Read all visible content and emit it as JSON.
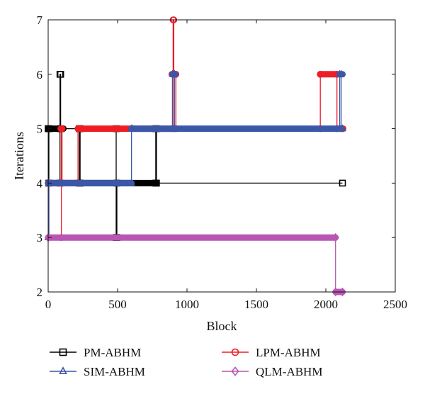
{
  "chart_data": {
    "type": "line",
    "xlabel": "Block",
    "ylabel": "Iterations",
    "xlim": [
      0,
      2500
    ],
    "ylim": [
      2,
      7
    ],
    "xticks": [
      0,
      500,
      1000,
      1500,
      2000,
      2500
    ],
    "yticks": [
      2,
      3,
      4,
      5,
      6,
      7
    ],
    "grid": false,
    "legend_position": "bottom",
    "series": [
      {
        "name": "PM-ABHM",
        "color": "#000000",
        "marker": "square",
        "x": [
          0,
          5,
          5,
          85,
          85,
          90,
          90,
          225,
          225,
          230,
          230,
          490,
          490,
          495,
          495,
          775,
          775,
          780,
          780,
          2120
        ],
        "y": [
          5,
          5,
          4,
          4,
          6,
          6,
          5,
          5,
          4,
          4,
          5,
          5,
          3,
          3,
          4,
          4,
          5,
          5,
          4,
          4
        ],
        "dense_ranges": [
          [
            0,
            110,
            5
          ],
          [
            0,
            780,
            4
          ]
        ]
      },
      {
        "name": "LPM-ABHM",
        "color": "#ee1c25",
        "marker": "circle",
        "x": [
          0,
          5,
          5,
          95,
          95,
          100,
          100,
          215,
          215,
          220,
          220,
          900,
          900,
          905,
          905,
          920,
          920,
          1960,
          1960,
          2080,
          2080,
          2120
        ],
        "y": [
          4,
          4,
          3,
          3,
          5,
          5,
          4,
          4,
          5,
          5,
          5,
          5,
          7,
          7,
          6,
          6,
          5,
          5,
          6,
          6,
          5,
          5
        ],
        "dense_ranges": [
          [
            0,
            215,
            4
          ],
          [
            90,
            100,
            5
          ],
          [
            215,
            920,
            5
          ],
          [
            890,
            920,
            6
          ],
          [
            1960,
            2085,
            6
          ],
          [
            2110,
            2125,
            5
          ]
        ]
      },
      {
        "name": "SIM-ABHM",
        "color": "#3a57a8",
        "marker": "triangle",
        "x": [
          0,
          5,
          5,
          600,
          600,
          605,
          605,
          895,
          895,
          910,
          910,
          2100,
          2100,
          2110,
          2110,
          2120
        ],
        "y": [
          3,
          3,
          4,
          4,
          5,
          5,
          5,
          5,
          6,
          6,
          5,
          5,
          6,
          6,
          5,
          5
        ],
        "dense_ranges": [
          [
            0,
            600,
            4
          ],
          [
            600,
            2110,
            5
          ],
          [
            895,
            915,
            6
          ],
          [
            2100,
            2120,
            6
          ]
        ]
      },
      {
        "name": "QLM-ABHM",
        "color": "#b956b3",
        "marker": "diamond",
        "x": [
          0,
          2070,
          2070,
          2120
        ],
        "y": [
          3,
          3,
          2,
          2
        ],
        "dense_ranges": [
          [
            0,
            2070,
            3
          ],
          [
            2070,
            2120,
            2
          ]
        ]
      }
    ]
  }
}
